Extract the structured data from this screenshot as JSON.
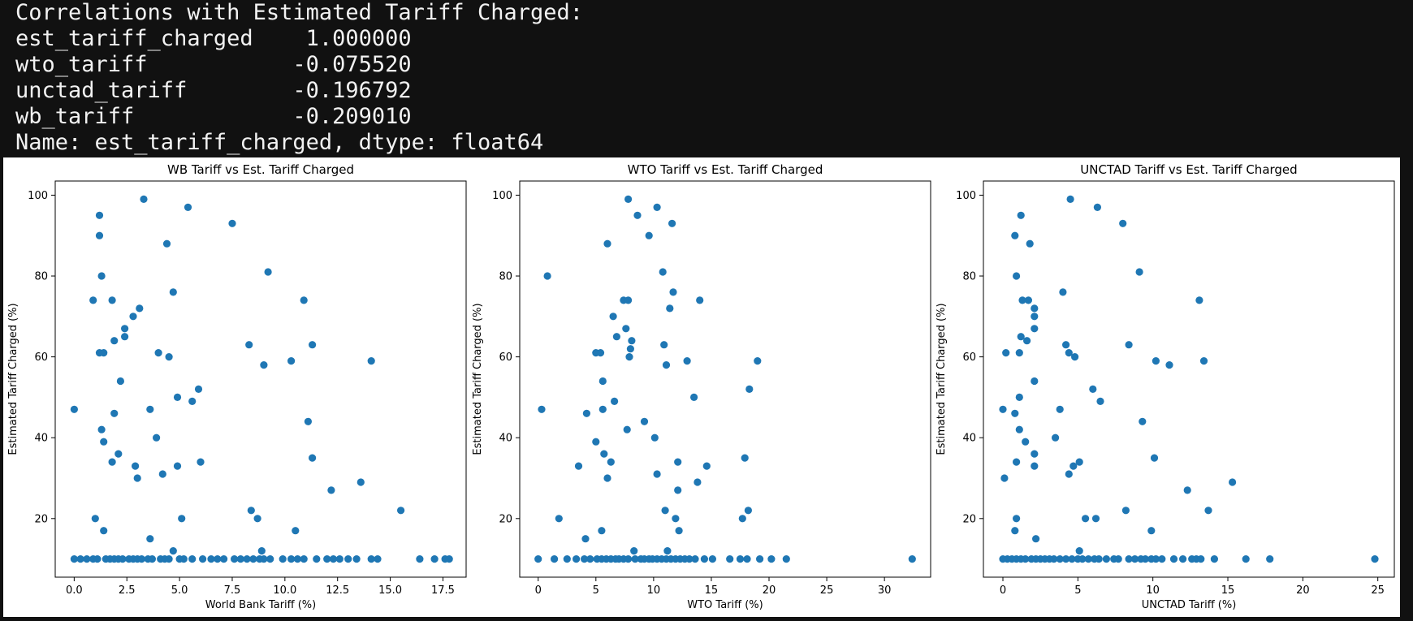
{
  "console": {
    "lines": [
      "Correlations with Estimated Tariff Charged:",
      "est_tariff_charged    1.000000",
      "wto_tariff           -0.075520",
      "unctad_tariff        -0.196792",
      "wb_tariff            -0.209010",
      "Name: est_tariff_charged, dtype: float64"
    ]
  },
  "chart_data": [
    {
      "type": "scatter",
      "title": "WB Tariff vs Est. Tariff Charged",
      "xlabel": "World Bank Tariff (%)",
      "ylabel": "Estimated Tariff Charged (%)",
      "xlim": [
        -0.9,
        18.6
      ],
      "ylim": [
        5.5,
        103.5
      ],
      "xticks": [
        0.0,
        2.5,
        5.0,
        7.5,
        10.0,
        12.5,
        15.0,
        17.5
      ],
      "xtick_labels": [
        "0.0",
        "2.5",
        "5.0",
        "7.5",
        "10.0",
        "12.5",
        "15.0",
        "17.5"
      ],
      "yticks": [
        20,
        40,
        60,
        80,
        100
      ],
      "ytick_labels": [
        "20",
        "40",
        "60",
        "80",
        "100"
      ],
      "marker_color": "#1f77b4",
      "points": [
        [
          0.0,
          47
        ],
        [
          1.2,
          95
        ],
        [
          1.2,
          90
        ],
        [
          0.9,
          74
        ],
        [
          1.3,
          80
        ],
        [
          1.2,
          61
        ],
        [
          1.4,
          61
        ],
        [
          1.3,
          42
        ],
        [
          1.4,
          39
        ],
        [
          1.4,
          17
        ],
        [
          1.0,
          20
        ],
        [
          1.8,
          74
        ],
        [
          1.9,
          64
        ],
        [
          1.9,
          46
        ],
        [
          1.8,
          34
        ],
        [
          2.1,
          36
        ],
        [
          2.2,
          54
        ],
        [
          2.4,
          67
        ],
        [
          2.4,
          65
        ],
        [
          2.8,
          70
        ],
        [
          3.1,
          72
        ],
        [
          3.3,
          99
        ],
        [
          2.9,
          33
        ],
        [
          3.0,
          30
        ],
        [
          3.6,
          47
        ],
        [
          3.6,
          15
        ],
        [
          3.9,
          40
        ],
        [
          4.0,
          61
        ],
        [
          4.2,
          31
        ],
        [
          4.4,
          88
        ],
        [
          4.5,
          60
        ],
        [
          4.7,
          76
        ],
        [
          4.9,
          50
        ],
        [
          4.9,
          33
        ],
        [
          5.1,
          20
        ],
        [
          5.4,
          97
        ],
        [
          5.6,
          49
        ],
        [
          5.9,
          52
        ],
        [
          6.0,
          34
        ],
        [
          7.5,
          93
        ],
        [
          8.3,
          63
        ],
        [
          8.4,
          22
        ],
        [
          8.7,
          20
        ],
        [
          8.9,
          12
        ],
        [
          9.0,
          58
        ],
        [
          9.2,
          81
        ],
        [
          10.3,
          59
        ],
        [
          10.9,
          74
        ],
        [
          11.1,
          44
        ],
        [
          11.3,
          63
        ],
        [
          11.3,
          35
        ],
        [
          10.5,
          17
        ],
        [
          12.2,
          27
        ],
        [
          13.6,
          29
        ],
        [
          14.1,
          59
        ],
        [
          15.5,
          22
        ],
        [
          4.7,
          12
        ],
        [
          0.0,
          10
        ],
        [
          0.3,
          10
        ],
        [
          0.6,
          10
        ],
        [
          0.9,
          10
        ],
        [
          1.1,
          10
        ],
        [
          1.5,
          10
        ],
        [
          1.7,
          10
        ],
        [
          1.9,
          10
        ],
        [
          2.1,
          10
        ],
        [
          2.3,
          10
        ],
        [
          2.6,
          10
        ],
        [
          2.8,
          10
        ],
        [
          3.0,
          10
        ],
        [
          3.2,
          10
        ],
        [
          3.5,
          10
        ],
        [
          3.7,
          10
        ],
        [
          4.1,
          10
        ],
        [
          4.3,
          10
        ],
        [
          4.5,
          10
        ],
        [
          5.0,
          10
        ],
        [
          5.2,
          10
        ],
        [
          5.6,
          10
        ],
        [
          6.1,
          10
        ],
        [
          6.5,
          10
        ],
        [
          6.8,
          10
        ],
        [
          7.1,
          10
        ],
        [
          7.6,
          10
        ],
        [
          7.9,
          10
        ],
        [
          8.2,
          10
        ],
        [
          8.5,
          10
        ],
        [
          8.8,
          10
        ],
        [
          9.0,
          10
        ],
        [
          9.3,
          10
        ],
        [
          9.9,
          10
        ],
        [
          10.3,
          10
        ],
        [
          10.6,
          10
        ],
        [
          10.9,
          10
        ],
        [
          11.5,
          10
        ],
        [
          12.0,
          10
        ],
        [
          12.3,
          10
        ],
        [
          12.6,
          10
        ],
        [
          13.0,
          10
        ],
        [
          13.4,
          10
        ],
        [
          14.1,
          10
        ],
        [
          14.4,
          10
        ],
        [
          16.4,
          10
        ],
        [
          17.1,
          10
        ],
        [
          17.6,
          10
        ],
        [
          17.8,
          10
        ]
      ]
    },
    {
      "type": "scatter",
      "title": "WTO Tariff vs Est. Tariff Charged",
      "xlabel": "WTO Tariff (%)",
      "ylabel": "Estimated Tariff Charged (%)",
      "xlim": [
        -1.6,
        34.0
      ],
      "ylim": [
        5.5,
        103.5
      ],
      "xticks": [
        0,
        5,
        10,
        15,
        20,
        25,
        30
      ],
      "xtick_labels": [
        "0",
        "5",
        "10",
        "15",
        "20",
        "25",
        "30"
      ],
      "yticks": [
        20,
        40,
        60,
        80,
        100
      ],
      "ytick_labels": [
        "20",
        "40",
        "60",
        "80",
        "100"
      ],
      "marker_color": "#1f77b4",
      "points": [
        [
          0.3,
          47
        ],
        [
          0.8,
          80
        ],
        [
          1.8,
          20
        ],
        [
          3.5,
          33
        ],
        [
          4.2,
          46
        ],
        [
          4.1,
          15
        ],
        [
          5.0,
          61
        ],
        [
          5.4,
          61
        ],
        [
          5.0,
          39
        ],
        [
          5.6,
          54
        ],
        [
          5.6,
          47
        ],
        [
          5.7,
          36
        ],
        [
          6.0,
          30
        ],
        [
          6.0,
          88
        ],
        [
          6.3,
          34
        ],
        [
          6.5,
          70
        ],
        [
          6.6,
          49
        ],
        [
          6.8,
          65
        ],
        [
          7.4,
          74
        ],
        [
          7.6,
          67
        ],
        [
          7.8,
          74
        ],
        [
          7.8,
          99
        ],
        [
          7.7,
          42
        ],
        [
          7.9,
          60
        ],
        [
          8.0,
          62
        ],
        [
          8.1,
          64
        ],
        [
          8.3,
          12
        ],
        [
          8.6,
          95
        ],
        [
          9.2,
          44
        ],
        [
          9.6,
          90
        ],
        [
          10.1,
          40
        ],
        [
          10.3,
          97
        ],
        [
          10.3,
          31
        ],
        [
          10.8,
          81
        ],
        [
          10.9,
          63
        ],
        [
          11.0,
          22
        ],
        [
          11.1,
          58
        ],
        [
          11.2,
          12
        ],
        [
          11.4,
          72
        ],
        [
          11.6,
          93
        ],
        [
          11.7,
          76
        ],
        [
          11.9,
          20
        ],
        [
          12.1,
          34
        ],
        [
          12.1,
          27
        ],
        [
          12.2,
          17
        ],
        [
          12.9,
          59
        ],
        [
          13.5,
          50
        ],
        [
          13.8,
          29
        ],
        [
          14.0,
          74
        ],
        [
          14.6,
          33
        ],
        [
          17.7,
          20
        ],
        [
          17.9,
          35
        ],
        [
          18.3,
          52
        ],
        [
          18.2,
          22
        ],
        [
          19.0,
          59
        ],
        [
          5.5,
          17
        ],
        [
          0.0,
          10
        ],
        [
          1.4,
          10
        ],
        [
          2.5,
          10
        ],
        [
          3.3,
          10
        ],
        [
          4.0,
          10
        ],
        [
          4.5,
          10
        ],
        [
          5.1,
          10
        ],
        [
          5.5,
          10
        ],
        [
          5.9,
          10
        ],
        [
          6.3,
          10
        ],
        [
          6.7,
          10
        ],
        [
          7.0,
          10
        ],
        [
          7.4,
          10
        ],
        [
          7.8,
          10
        ],
        [
          8.4,
          10
        ],
        [
          8.9,
          10
        ],
        [
          9.2,
          10
        ],
        [
          9.6,
          10
        ],
        [
          9.9,
          10
        ],
        [
          10.3,
          10
        ],
        [
          10.7,
          10
        ],
        [
          11.1,
          10
        ],
        [
          11.5,
          10
        ],
        [
          11.9,
          10
        ],
        [
          12.3,
          10
        ],
        [
          12.7,
          10
        ],
        [
          13.1,
          10
        ],
        [
          13.6,
          10
        ],
        [
          14.4,
          10
        ],
        [
          15.1,
          10
        ],
        [
          16.6,
          10
        ],
        [
          17.5,
          10
        ],
        [
          18.1,
          10
        ],
        [
          19.2,
          10
        ],
        [
          20.2,
          10
        ],
        [
          21.5,
          10
        ],
        [
          32.4,
          10
        ]
      ]
    },
    {
      "type": "scatter",
      "title": "UNCTAD Tariff vs Est. Tariff Charged",
      "xlabel": "UNCTAD Tariff (%)",
      "ylabel": "Estimated Tariff Charged (%)",
      "xlim": [
        -1.3,
        26.1
      ],
      "ylim": [
        5.5,
        103.5
      ],
      "xticks": [
        0,
        5,
        10,
        15,
        20,
        25
      ],
      "xtick_labels": [
        "0",
        "5",
        "10",
        "15",
        "20",
        "25"
      ],
      "yticks": [
        20,
        40,
        60,
        80,
        100
      ],
      "ytick_labels": [
        "20",
        "40",
        "60",
        "80",
        "100"
      ],
      "marker_color": "#1f77b4",
      "points": [
        [
          0.0,
          47
        ],
        [
          0.2,
          61
        ],
        [
          0.1,
          30
        ],
        [
          0.8,
          90
        ],
        [
          0.8,
          46
        ],
        [
          0.9,
          80
        ],
        [
          0.9,
          34
        ],
        [
          0.9,
          20
        ],
        [
          0.8,
          17
        ],
        [
          1.1,
          61
        ],
        [
          1.2,
          95
        ],
        [
          1.2,
          65
        ],
        [
          1.1,
          50
        ],
        [
          1.1,
          42
        ],
        [
          1.3,
          74
        ],
        [
          1.5,
          39
        ],
        [
          1.6,
          64
        ],
        [
          1.7,
          74
        ],
        [
          1.8,
          88
        ],
        [
          2.1,
          72
        ],
        [
          2.1,
          70
        ],
        [
          2.1,
          67
        ],
        [
          2.1,
          54
        ],
        [
          2.1,
          36
        ],
        [
          2.1,
          33
        ],
        [
          2.2,
          15
        ],
        [
          3.5,
          40
        ],
        [
          3.8,
          47
        ],
        [
          4.0,
          76
        ],
        [
          4.2,
          63
        ],
        [
          4.4,
          61
        ],
        [
          4.4,
          31
        ],
        [
          4.5,
          99
        ],
        [
          4.7,
          33
        ],
        [
          4.8,
          60
        ],
        [
          5.1,
          34
        ],
        [
          5.1,
          12
        ],
        [
          5.5,
          20
        ],
        [
          6.0,
          52
        ],
        [
          6.2,
          20
        ],
        [
          6.3,
          97
        ],
        [
          6.5,
          49
        ],
        [
          8.0,
          93
        ],
        [
          8.2,
          22
        ],
        [
          8.4,
          63
        ],
        [
          9.1,
          81
        ],
        [
          9.3,
          44
        ],
        [
          9.9,
          17
        ],
        [
          10.1,
          35
        ],
        [
          10.2,
          59
        ],
        [
          11.1,
          58
        ],
        [
          12.3,
          27
        ],
        [
          13.1,
          74
        ],
        [
          13.4,
          59
        ],
        [
          13.7,
          22
        ],
        [
          15.3,
          29
        ],
        [
          0.0,
          10
        ],
        [
          0.3,
          10
        ],
        [
          0.6,
          10
        ],
        [
          0.9,
          10
        ],
        [
          1.2,
          10
        ],
        [
          1.5,
          10
        ],
        [
          1.9,
          10
        ],
        [
          2.2,
          10
        ],
        [
          2.5,
          10
        ],
        [
          2.8,
          10
        ],
        [
          3.1,
          10
        ],
        [
          3.4,
          10
        ],
        [
          3.8,
          10
        ],
        [
          4.2,
          10
        ],
        [
          4.6,
          10
        ],
        [
          5.0,
          10
        ],
        [
          5.3,
          10
        ],
        [
          5.7,
          10
        ],
        [
          6.1,
          10
        ],
        [
          6.4,
          10
        ],
        [
          6.9,
          10
        ],
        [
          7.4,
          10
        ],
        [
          7.7,
          10
        ],
        [
          8.4,
          10
        ],
        [
          8.8,
          10
        ],
        [
          9.2,
          10
        ],
        [
          9.5,
          10
        ],
        [
          9.9,
          10
        ],
        [
          10.2,
          10
        ],
        [
          10.6,
          10
        ],
        [
          11.4,
          10
        ],
        [
          12.0,
          10
        ],
        [
          12.6,
          10
        ],
        [
          12.9,
          10
        ],
        [
          13.2,
          10
        ],
        [
          14.1,
          10
        ],
        [
          16.2,
          10
        ],
        [
          17.8,
          10
        ],
        [
          24.8,
          10
        ]
      ]
    }
  ]
}
